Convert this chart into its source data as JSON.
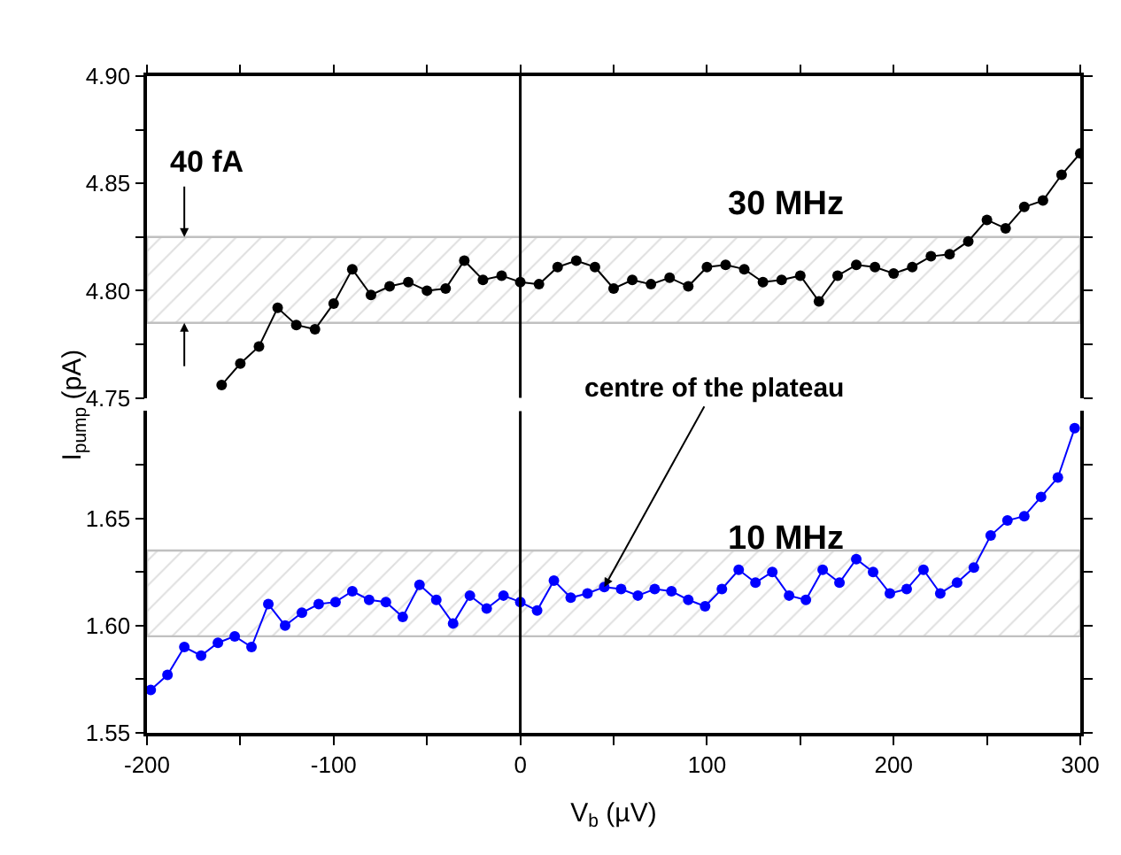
{
  "chart_data": [
    {
      "type": "line",
      "marker": "circle",
      "xlim": [
        -200,
        300
      ],
      "xticks": [
        -200,
        {
          "value": -150,
          "label": null
        },
        -100,
        {
          "value": -50,
          "label": null
        },
        0,
        {
          "value": 50,
          "label": null
        },
        100,
        {
          "value": 150,
          "label": null
        },
        200,
        {
          "value": 250,
          "label": null
        },
        300
      ],
      "ylim": [
        4.75,
        4.9
      ],
      "yticks": [
        {
          "value": 4.75,
          "label": "4.75"
        },
        {
          "value": 4.775,
          "label": null
        },
        {
          "value": 4.8,
          "label": "4.80"
        },
        {
          "value": 4.825,
          "label": null
        },
        {
          "value": 4.85,
          "label": "4.85"
        },
        {
          "value": 4.875,
          "label": null
        },
        {
          "value": 4.9,
          "label": "4.90"
        }
      ],
      "tick_labels": "y",
      "legend": false,
      "series": [
        {
          "name": "30 MHz",
          "color": "#000000",
          "x": [
            -160,
            -150,
            -140,
            -130,
            -120,
            -110,
            -100,
            -90,
            -80,
            -70,
            -60,
            -50,
            -40,
            -30,
            -20,
            -10,
            0,
            10,
            20,
            30,
            40,
            50,
            60,
            70,
            80,
            90,
            100,
            110,
            120,
            130,
            140,
            150,
            160,
            170,
            180,
            190,
            200,
            210,
            220,
            230,
            240,
            250,
            260,
            270,
            280,
            290,
            300
          ],
          "values": [
            4.756,
            4.766,
            4.774,
            4.792,
            4.784,
            4.782,
            4.794,
            4.81,
            4.798,
            4.802,
            4.804,
            4.8,
            4.801,
            4.814,
            4.805,
            4.807,
            4.804,
            4.803,
            4.811,
            4.814,
            4.811,
            4.801,
            4.805,
            4.803,
            4.806,
            4.802,
            4.811,
            4.812,
            4.81,
            4.804,
            4.805,
            4.807,
            4.795,
            4.807,
            4.812,
            4.811,
            4.808,
            4.811,
            4.816,
            4.817,
            4.823,
            4.833,
            4.829,
            4.839,
            4.842,
            4.854,
            4.864
          ]
        }
      ],
      "bands": [
        {
          "axis": "y",
          "from": 4.785,
          "to": 4.825,
          "label": "40 fA",
          "color": "#c0c0c0"
        }
      ],
      "ref_lines": [
        {
          "axis": "x",
          "value": 0,
          "color": "#000000"
        }
      ]
    },
    {
      "type": "line",
      "marker": "circle",
      "xlabel": "V$_{b}$ (µV)",
      "ylabel": "I$_{pump}$ (pA)",
      "xlim": [
        -200,
        300
      ],
      "xticks": [
        -200,
        {
          "value": -150,
          "label": null
        },
        -100,
        {
          "value": -50,
          "label": null
        },
        0,
        {
          "value": 50,
          "label": null
        },
        100,
        {
          "value": 150,
          "label": null
        },
        200,
        {
          "value": 250,
          "label": null
        },
        300
      ],
      "ylim": [
        1.55,
        1.7
      ],
      "yticks": [
        {
          "value": 1.55,
          "label": "1.55"
        },
        {
          "value": 1.575,
          "label": null
        },
        {
          "value": 1.6,
          "label": "1.60"
        },
        {
          "value": 1.625,
          "label": null
        },
        {
          "value": 1.65,
          "label": "1.65"
        },
        {
          "value": 1.675,
          "label": null
        }
      ],
      "legend": false,
      "series": [
        {
          "name": "10 MHz",
          "color": "#0000ff",
          "x": [
            -198,
            -189,
            -180,
            -171,
            -162,
            -153,
            -144,
            -135,
            -126,
            -117,
            -108,
            -99,
            -90,
            -81,
            -72,
            -63,
            -54,
            -45,
            -36,
            -27,
            -18,
            -9,
            0,
            9,
            18,
            27,
            36,
            45,
            54,
            63,
            72,
            81,
            90,
            99,
            108,
            117,
            126,
            135,
            144,
            153,
            162,
            171,
            180,
            189,
            198,
            207,
            216,
            225,
            234,
            243,
            252,
            261,
            270,
            279,
            288,
            297
          ],
          "values": [
            1.57,
            1.577,
            1.59,
            1.586,
            1.592,
            1.595,
            1.59,
            1.61,
            1.6,
            1.606,
            1.61,
            1.611,
            1.616,
            1.612,
            1.611,
            1.604,
            1.619,
            1.612,
            1.601,
            1.614,
            1.608,
            1.614,
            1.611,
            1.607,
            1.621,
            1.613,
            1.615,
            1.618,
            1.617,
            1.614,
            1.617,
            1.616,
            1.612,
            1.609,
            1.617,
            1.626,
            1.62,
            1.625,
            1.614,
            1.612,
            1.626,
            1.62,
            1.631,
            1.625,
            1.615,
            1.617,
            1.626,
            1.615,
            1.62,
            1.627,
            1.642,
            1.649,
            1.651,
            1.66,
            1.669,
            1.692
          ]
        }
      ],
      "bands": [
        {
          "axis": "y",
          "from": 1.595,
          "to": 1.635,
          "color": "#c0c0c0"
        }
      ],
      "ref_lines": [
        {
          "axis": "x",
          "value": 0,
          "color": "#000000"
        }
      ],
      "annotations": [
        {
          "text": "centre of the plateau",
          "x": 45,
          "y": 1.618
        }
      ]
    }
  ]
}
